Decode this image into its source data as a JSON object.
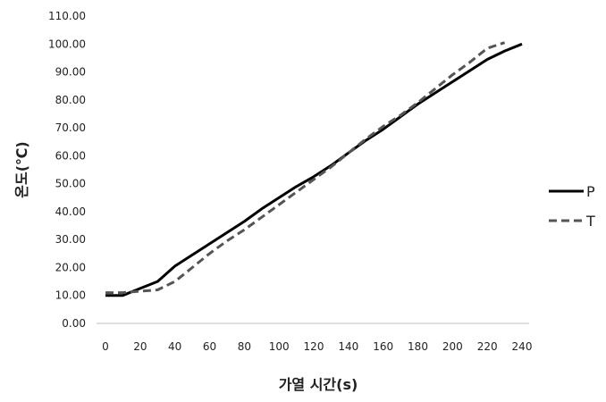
{
  "chart_data": {
    "type": "line",
    "title": "",
    "xlabel": "가열 시간(s)",
    "ylabel": "온도(℃)",
    "x": [
      0,
      10,
      20,
      30,
      40,
      50,
      60,
      70,
      80,
      90,
      100,
      110,
      120,
      130,
      140,
      150,
      160,
      170,
      180,
      190,
      200,
      210,
      220,
      230,
      240
    ],
    "xticks": [
      "0",
      "20",
      "40",
      "60",
      "80",
      "100",
      "120",
      "140",
      "160",
      "180",
      "200",
      "220",
      "240"
    ],
    "yticks": [
      "0.00",
      "10.00",
      "20.00",
      "30.00",
      "40.00",
      "50.00",
      "60.00",
      "70.00",
      "80.00",
      "90.00",
      "100.00",
      "110.00"
    ],
    "xlim": [
      0,
      240
    ],
    "ylim": [
      0,
      110
    ],
    "grid": false,
    "legend_position": "right",
    "series": [
      {
        "name": "P",
        "style": "solid",
        "color": "#000000",
        "values": [
          10.0,
          10.0,
          12.5,
          15.0,
          20.5,
          24.5,
          28.5,
          32.5,
          36.5,
          41.0,
          45.0,
          49.0,
          52.5,
          56.5,
          61.0,
          65.5,
          69.5,
          74.0,
          78.5,
          82.5,
          86.5,
          90.5,
          94.5,
          97.5,
          100.0
        ]
      },
      {
        "name": "T",
        "style": "dashed",
        "color": "#555555",
        "values": [
          11.0,
          11.0,
          11.5,
          12.0,
          15.0,
          20.0,
          25.0,
          29.5,
          33.5,
          38.0,
          42.5,
          47.0,
          51.5,
          56.0,
          61.0,
          66.0,
          70.5,
          74.5,
          79.0,
          84.0,
          89.0,
          93.5,
          98.5,
          100.5,
          null
        ]
      }
    ]
  }
}
